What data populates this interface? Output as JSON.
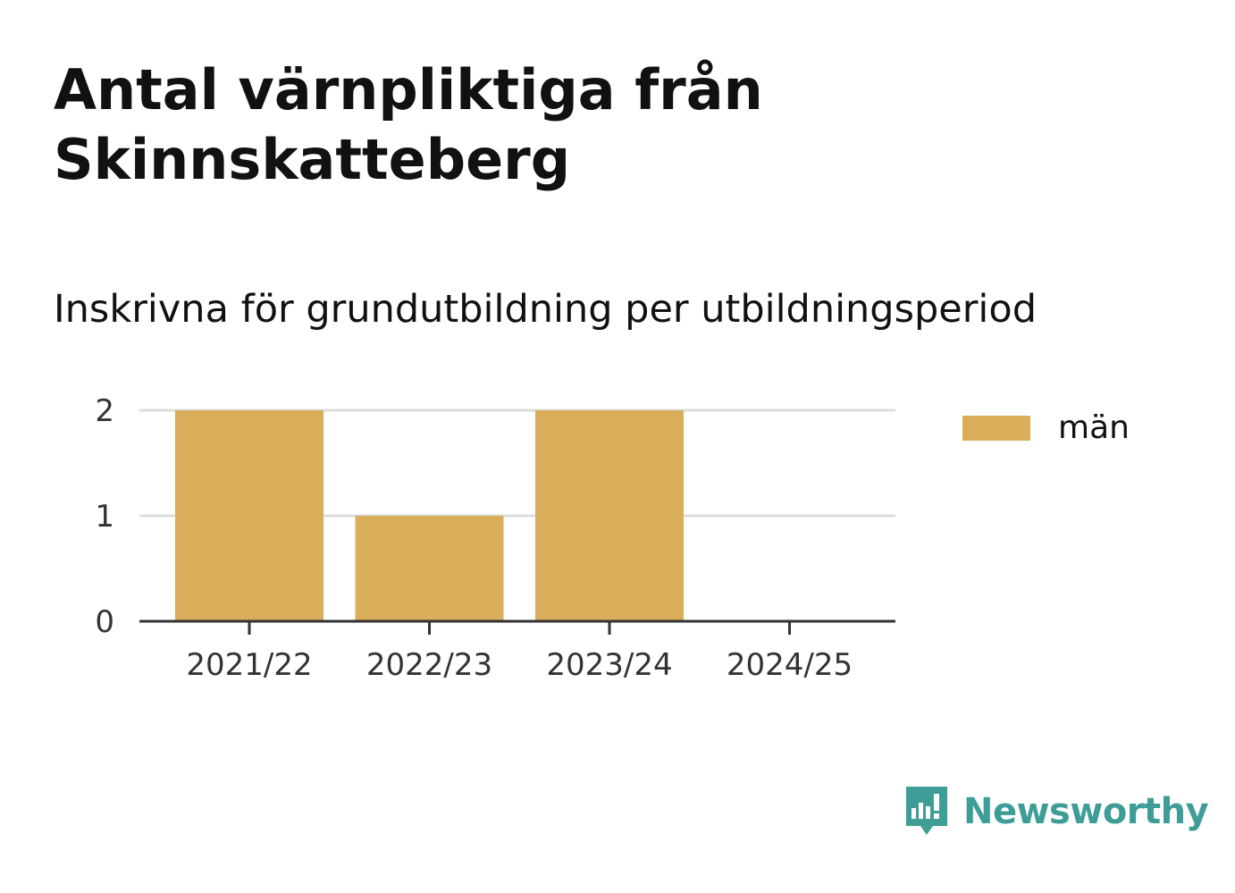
{
  "header": {
    "title": "Antal värnpliktiga från Skinnskatteberg",
    "subtitle": "Inskrivna för grundutbildning per utbildningsperiod"
  },
  "chart_data": {
    "type": "bar",
    "categories": [
      "2021/22",
      "2022/23",
      "2023/24",
      "2024/25"
    ],
    "series": [
      {
        "name": "män",
        "values": [
          2,
          1,
          2,
          0
        ],
        "color": "#d9ae5b"
      }
    ],
    "title": "Antal värnpliktiga från Skinnskatteberg",
    "subtitle": "Inskrivna för grundutbildning per utbildningsperiod",
    "xlabel": "",
    "ylabel": "",
    "ylim": [
      0,
      2
    ],
    "yticks": [
      "0",
      "1",
      "2"
    ],
    "grid": true,
    "legend": "right"
  },
  "legend": {
    "label": "män",
    "color": "#d9ae5b"
  },
  "branding": {
    "name": "Newsworthy",
    "icon": "newsworthy-logo-icon",
    "color": "#3e9e97"
  }
}
